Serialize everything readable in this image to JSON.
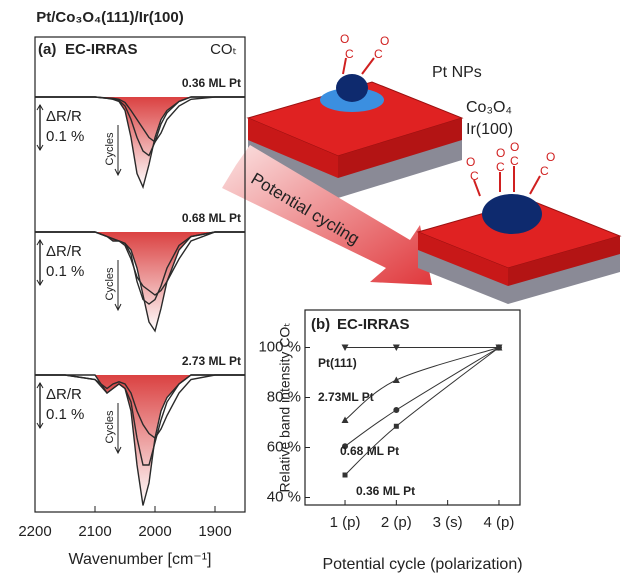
{
  "chart_data": [
    {
      "type": "spectra",
      "title": "Pt/Co₃O₄(111)/Ir(100)",
      "panel_label": "(a)",
      "subtitle": "EC-IRRAS",
      "annotation": "COₜ",
      "x_label": "Wavenumber [cm⁻¹]",
      "xlim": [
        2200,
        1850
      ],
      "xticks": [
        2200,
        2100,
        2000,
        1900
      ],
      "x": [
        2200,
        2150,
        2100,
        2080,
        2070,
        2060,
        2050,
        2040,
        2030,
        2020,
        2010,
        2000,
        1990,
        1980,
        1960,
        1940,
        1900,
        1850
      ],
      "panels": [
        {
          "label": "0.36 ML Pt",
          "scale_label": "ΔR/R",
          "scale": {
            "value": 0.1,
            "label": "0.1 %"
          },
          "arrow_label": "Cycles",
          "series": [
            {
              "color": "#2a2a2a",
              "values": [
                0,
                0,
                0,
                -0.003,
                -0.005,
                -0.01,
                -0.03,
                -0.09,
                -0.17,
                -0.2,
                -0.15,
                -0.09,
                -0.05,
                -0.03,
                -0.01,
                0,
                0,
                0
              ]
            },
            {
              "color": "#2a2a2a",
              "values": [
                0,
                0,
                0,
                -0.003,
                -0.004,
                -0.008,
                -0.02,
                -0.05,
                -0.09,
                -0.12,
                -0.13,
                -0.1,
                -0.06,
                -0.035,
                -0.01,
                0,
                0,
                0
              ]
            },
            {
              "color": "#2a2a2a",
              "values": [
                0,
                0,
                0,
                -0.002,
                -0.003,
                -0.005,
                -0.012,
                -0.03,
                -0.05,
                -0.07,
                -0.09,
                -0.1,
                -0.08,
                -0.05,
                -0.02,
                -0.005,
                0,
                0
              ]
            }
          ]
        },
        {
          "label": "0.68 ML Pt",
          "scale_label": "ΔR/R",
          "scale": {
            "value": 0.1,
            "label": "0.1 %"
          },
          "arrow_label": "Cycles",
          "series": [
            {
              "color": "#2a2a2a",
              "values": [
                0,
                0,
                0,
                -0.01,
                -0.02,
                -0.02,
                -0.025,
                -0.04,
                -0.08,
                -0.14,
                -0.2,
                -0.22,
                -0.17,
                -0.11,
                -0.04,
                -0.01,
                0,
                0
              ]
            },
            {
              "color": "#2a2a2a",
              "values": [
                0,
                0,
                0,
                -0.01,
                -0.015,
                -0.02,
                -0.025,
                -0.05,
                -0.11,
                -0.15,
                -0.16,
                -0.15,
                -0.12,
                -0.08,
                -0.03,
                -0.01,
                0,
                0
              ]
            },
            {
              "color": "#2a2a2a",
              "values": [
                0,
                0,
                0,
                -0.01,
                -0.015,
                -0.02,
                -0.03,
                -0.06,
                -0.1,
                -0.12,
                -0.13,
                -0.14,
                -0.13,
                -0.11,
                -0.06,
                -0.02,
                0,
                0
              ]
            }
          ]
        },
        {
          "label": "2.73 ML Pt",
          "scale_label": "ΔR/R",
          "scale": {
            "value": 0.1,
            "label": "0.1 %"
          },
          "arrow_label": "Cycles",
          "series": [
            {
              "color": "#2a2a2a",
              "values": [
                0,
                0,
                0,
                -0.04,
                -0.03,
                -0.02,
                -0.03,
                -0.08,
                -0.2,
                -0.29,
                -0.24,
                -0.14,
                -0.08,
                -0.05,
                -0.02,
                0,
                0,
                0
              ]
            },
            {
              "color": "#2a2a2a",
              "values": [
                0,
                0,
                -0.01,
                -0.04,
                -0.03,
                -0.02,
                -0.03,
                -0.06,
                -0.14,
                -0.2,
                -0.2,
                -0.15,
                -0.1,
                -0.06,
                -0.02,
                0,
                0,
                0
              ]
            },
            {
              "color": "#2a2a2a",
              "values": [
                0,
                0,
                -0.01,
                -0.03,
                -0.02,
                -0.015,
                -0.02,
                -0.04,
                -0.08,
                -0.11,
                -0.13,
                -0.14,
                -0.12,
                -0.09,
                -0.04,
                -0.01,
                0,
                0
              ]
            }
          ]
        }
      ]
    },
    {
      "type": "line",
      "panel_label": "(b)",
      "title": "EC-IRRAS",
      "y_label": "Relative band intensity COₜ",
      "x_label": "Potential cycle (polarization)",
      "xlim": [
        0.22,
        4.41
      ],
      "xticks": [
        {
          "value": 1,
          "label": "1 (p)"
        },
        {
          "value": 2,
          "label": "2 (p)"
        },
        {
          "value": 3,
          "label": "3 (s)"
        },
        {
          "value": 4,
          "label": "4 (p)"
        }
      ],
      "ylim": [
        37,
        115
      ],
      "yticks": [
        {
          "value": 40,
          "label": "40 %"
        },
        {
          "value": 60,
          "label": "60 %"
        },
        {
          "value": 80,
          "label": "80 %"
        },
        {
          "value": 100,
          "label": "100 %"
        }
      ],
      "series": [
        {
          "name": "Pt(111)",
          "color": "#333333",
          "marker": "triangle-down",
          "x": [
            1,
            2,
            4
          ],
          "values": [
            100,
            100,
            100
          ]
        },
        {
          "name": "2.73ML Pt",
          "color": "#333333",
          "marker": "triangle-up",
          "x": [
            1,
            2,
            4
          ],
          "values": [
            71,
            87,
            100
          ]
        },
        {
          "name": "0.68 ML Pt",
          "color": "#333333",
          "marker": "circle",
          "x": [
            1,
            2,
            4
          ],
          "values": [
            60.5,
            75,
            100
          ]
        },
        {
          "name": "0.36 ML Pt",
          "color": "#333333",
          "marker": "square",
          "x": [
            1,
            2,
            4
          ],
          "values": [
            49,
            68.5,
            100
          ]
        }
      ]
    }
  ],
  "illustration": {
    "pt_label": "Pt NPs",
    "oxide_label": "Co₃O₄",
    "substrate_label": "Ir(100)",
    "arrow_text": "Potential cycling",
    "carbon": "C",
    "oxygen": "O"
  }
}
